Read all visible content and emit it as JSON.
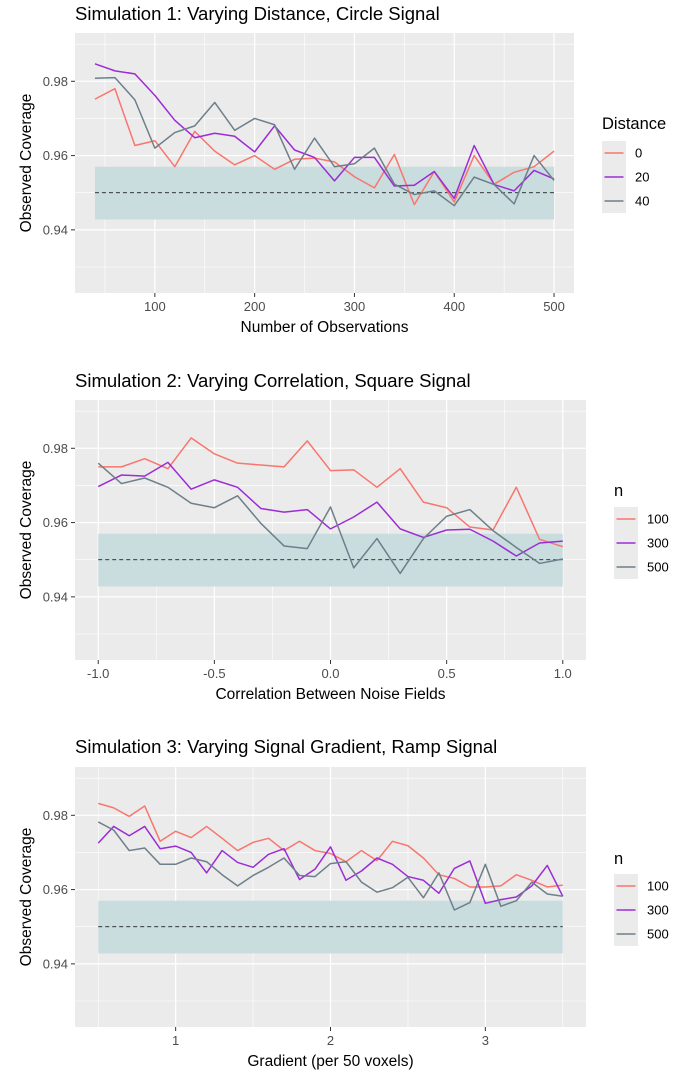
{
  "colors": {
    "panel_bg": "#EBEBEB",
    "grid_major": "#FFFFFF",
    "band": "#C9DCDE",
    "series1": "#F8766D",
    "series2": "#9C2CD6",
    "series3": "#6E7F8A",
    "text": "#000000",
    "tick_text": "#4D4D4D"
  },
  "chart_data": [
    {
      "type": "line",
      "title": "Simulation 1: Varying Distance, Circle Signal",
      "xlabel": "Number of Observations",
      "ylabel": "Observed Coverage",
      "xlim": [
        20,
        520
      ],
      "ylim": [
        0.923,
        0.993
      ],
      "xticks": [
        100,
        200,
        300,
        400,
        500
      ],
      "xtick_labels": [
        "100",
        "200",
        "300",
        "400",
        "500"
      ],
      "yticks": [
        0.94,
        0.96,
        0.98
      ],
      "ytick_labels": [
        "0.94",
        "0.96",
        "0.98"
      ],
      "band": [
        0.9428,
        0.957
      ],
      "reference_line": 0.95,
      "legend_title": "Distance",
      "x": [
        40,
        60,
        80,
        100,
        120,
        140,
        160,
        180,
        200,
        220,
        240,
        260,
        280,
        300,
        320,
        340,
        360,
        380,
        400,
        420,
        440,
        460,
        480,
        500
      ],
      "series": [
        {
          "name": "0",
          "values": [
            0.9752,
            0.978,
            0.9627,
            0.964,
            0.957,
            0.9665,
            0.9612,
            0.9575,
            0.96,
            0.9563,
            0.959,
            0.9593,
            0.9583,
            0.9543,
            0.9513,
            0.9603,
            0.9468,
            0.9557,
            0.9475,
            0.96,
            0.9523,
            0.9555,
            0.957,
            0.9612
          ]
        },
        {
          "name": "20",
          "values": [
            0.9847,
            0.9828,
            0.982,
            0.9762,
            0.9695,
            0.9648,
            0.966,
            0.9652,
            0.961,
            0.968,
            0.9615,
            0.9595,
            0.9532,
            0.9595,
            0.9595,
            0.9518,
            0.952,
            0.9557,
            0.9485,
            0.9627,
            0.9522,
            0.9505,
            0.956,
            0.9537
          ]
        },
        {
          "name": "40",
          "values": [
            0.9808,
            0.981,
            0.975,
            0.962,
            0.9662,
            0.968,
            0.9743,
            0.9668,
            0.97,
            0.9683,
            0.9563,
            0.9647,
            0.957,
            0.9578,
            0.962,
            0.9523,
            0.9495,
            0.9505,
            0.9465,
            0.9542,
            0.9522,
            0.947,
            0.96,
            0.9533
          ]
        }
      ]
    },
    {
      "type": "line",
      "title": "Simulation 2: Varying Correlation, Square Signal",
      "xlabel": "Correlation Between Noise Fields",
      "ylabel": "Observed Coverage",
      "xlim": [
        -1.1,
        1.1
      ],
      "ylim": [
        0.923,
        0.993
      ],
      "xticks": [
        -1.0,
        -0.5,
        0.0,
        0.5,
        1.0
      ],
      "xtick_labels": [
        "-1.0",
        "-0.5",
        "0.0",
        "0.5",
        "1.0"
      ],
      "yticks": [
        0.94,
        0.96,
        0.98
      ],
      "ytick_labels": [
        "0.94",
        "0.96",
        "0.98"
      ],
      "band": [
        0.9428,
        0.957
      ],
      "reference_line": 0.95,
      "legend_title": "n",
      "x": [
        -1.0,
        -0.9,
        -0.8,
        -0.7,
        -0.6,
        -0.5,
        -0.4,
        -0.3,
        -0.2,
        -0.1,
        0.0,
        0.1,
        0.2,
        0.3,
        0.4,
        0.5,
        0.6,
        0.7,
        0.8,
        0.9,
        1.0
      ],
      "series": [
        {
          "name": "100",
          "values": [
            0.975,
            0.975,
            0.9772,
            0.9745,
            0.9828,
            0.9785,
            0.976,
            0.9755,
            0.975,
            0.982,
            0.974,
            0.9742,
            0.9695,
            0.9745,
            0.9655,
            0.964,
            0.9588,
            0.958,
            0.9695,
            0.9555,
            0.9535
          ]
        },
        {
          "name": "300",
          "values": [
            0.9697,
            0.9728,
            0.9725,
            0.9762,
            0.969,
            0.9715,
            0.9695,
            0.9638,
            0.9628,
            0.9635,
            0.9583,
            0.9615,
            0.9655,
            0.9583,
            0.956,
            0.958,
            0.9582,
            0.955,
            0.951,
            0.9545,
            0.955
          ]
        },
        {
          "name": "500",
          "values": [
            0.976,
            0.9705,
            0.972,
            0.9695,
            0.9652,
            0.964,
            0.9672,
            0.9598,
            0.9537,
            0.953,
            0.9642,
            0.9478,
            0.9557,
            0.9463,
            0.9557,
            0.9617,
            0.9635,
            0.9578,
            0.9533,
            0.949,
            0.9502
          ]
        }
      ]
    },
    {
      "type": "line",
      "title": "Simulation 3: Varying Signal Gradient, Ramp Signal",
      "xlabel": "Gradient (per 50 voxels)",
      "ylabel": "Observed Coverage",
      "xlim": [
        0.35,
        3.65
      ],
      "ylim": [
        0.923,
        0.993
      ],
      "xticks": [
        1,
        2,
        3
      ],
      "xtick_labels": [
        "1",
        "2",
        "3"
      ],
      "yticks": [
        0.94,
        0.96,
        0.98
      ],
      "ytick_labels": [
        "0.94",
        "0.96",
        "0.98"
      ],
      "band": [
        0.9428,
        0.957
      ],
      "reference_line": 0.95,
      "legend_title": "n",
      "x": [
        0.5,
        0.6,
        0.7,
        0.8,
        0.9,
        1.0,
        1.1,
        1.2,
        1.3,
        1.4,
        1.5,
        1.6,
        1.7,
        1.8,
        1.9,
        2.0,
        2.1,
        2.2,
        2.3,
        2.4,
        2.5,
        2.6,
        2.7,
        2.8,
        2.9,
        3.0,
        3.1,
        3.2,
        3.3,
        3.4,
        3.5
      ],
      "series": [
        {
          "name": "100",
          "values": [
            0.9832,
            0.982,
            0.9797,
            0.9825,
            0.973,
            0.9757,
            0.974,
            0.977,
            0.9738,
            0.9705,
            0.9727,
            0.9738,
            0.9705,
            0.973,
            0.9705,
            0.9697,
            0.9675,
            0.9705,
            0.9678,
            0.973,
            0.9718,
            0.9685,
            0.964,
            0.963,
            0.9607,
            0.9607,
            0.961,
            0.964,
            0.9625,
            0.9607,
            0.9612
          ]
        },
        {
          "name": "300",
          "values": [
            0.9725,
            0.977,
            0.9745,
            0.977,
            0.971,
            0.9717,
            0.97,
            0.9645,
            0.9705,
            0.9673,
            0.966,
            0.9695,
            0.971,
            0.9627,
            0.9655,
            0.9715,
            0.9625,
            0.965,
            0.9685,
            0.9668,
            0.9635,
            0.9625,
            0.959,
            0.9657,
            0.9677,
            0.9563,
            0.9573,
            0.958,
            0.961,
            0.9665,
            0.9582
          ]
        },
        {
          "name": "500",
          "values": [
            0.9782,
            0.976,
            0.9705,
            0.9712,
            0.9668,
            0.9668,
            0.9685,
            0.9675,
            0.964,
            0.961,
            0.9638,
            0.966,
            0.9685,
            0.9638,
            0.9635,
            0.967,
            0.9675,
            0.962,
            0.9593,
            0.9605,
            0.9633,
            0.9578,
            0.9645,
            0.9545,
            0.9565,
            0.9668,
            0.9555,
            0.957,
            0.962,
            0.9588,
            0.9582
          ]
        }
      ]
    }
  ]
}
